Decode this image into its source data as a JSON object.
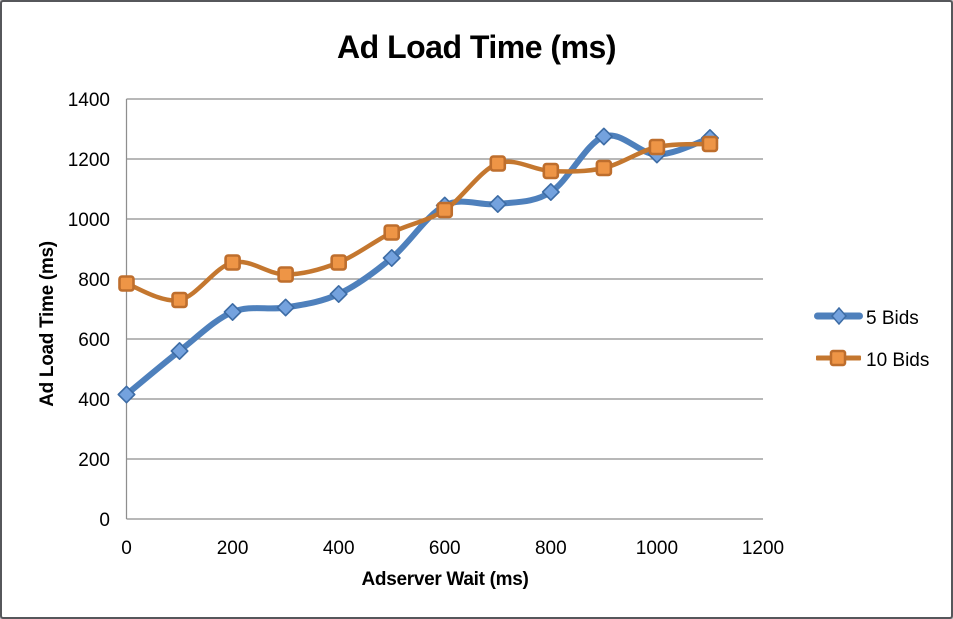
{
  "chart": {
    "title": "Ad Load Time (ms)",
    "x_axis_title": "Adserver Wait (ms)",
    "y_axis_title": "Ad Load Time (ms)"
  },
  "legend": {
    "items": [
      {
        "label": "5 Bids",
        "marker": "diamond"
      },
      {
        "label": "10 Bids",
        "marker": "square"
      }
    ]
  },
  "colors": {
    "blue_line": "#4E80BC",
    "blue_marker_fill": "#74A2DE",
    "blue_marker_stroke": "#3D6CA5",
    "orange_line": "#C4772F",
    "orange_marker_fill": "#EE9546",
    "orange_marker_stroke": "#BE6E2D",
    "gridline": "#8E8E8E",
    "text": "#000000"
  },
  "chart_data": {
    "type": "line",
    "title": "Ad Load Time (ms)",
    "xlabel": "Adserver Wait (ms)",
    "ylabel": "Ad Load Time (ms)",
    "x": [
      0,
      100,
      200,
      300,
      400,
      500,
      600,
      700,
      800,
      900,
      1000,
      1100
    ],
    "series": [
      {
        "name": "5 Bids",
        "values": [
          415,
          560,
          690,
          705,
          750,
          870,
          1045,
          1050,
          1090,
          1275,
          1215,
          1270
        ],
        "line_color": "#4E80BC",
        "line_width": 6,
        "marker": "diamond",
        "marker_fill": "#74A2DE",
        "marker_stroke": "#3D6CA5"
      },
      {
        "name": "10 Bids",
        "values": [
          785,
          730,
          855,
          815,
          855,
          955,
          1030,
          1185,
          1160,
          1170,
          1240,
          1250
        ],
        "line_color": "#C4772F",
        "line_width": 4.5,
        "marker": "square",
        "marker_fill": "#EE9546",
        "marker_stroke": "#BE6E2D"
      }
    ],
    "xlim": [
      0,
      1200
    ],
    "ylim": [
      0,
      1400
    ],
    "x_ticks": [
      0,
      200,
      400,
      600,
      800,
      1000,
      1200
    ],
    "y_ticks": [
      0,
      200,
      400,
      600,
      800,
      1000,
      1200,
      1400
    ],
    "grid": true,
    "smooth": true,
    "legend_position": "right"
  }
}
